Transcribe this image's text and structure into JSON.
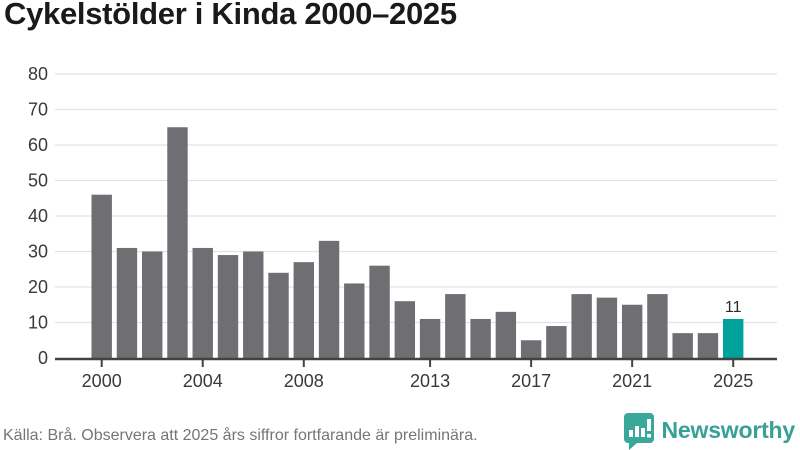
{
  "title": "Cykelstölder i Kinda 2000–2025",
  "footer": {
    "source_note": "Källa: Brå. Observera att 2025 års siffror fortfarande är preliminära.",
    "brand": "Newsworthy",
    "brand_icon": "newsworthy-bubble-barchart-icon"
  },
  "colors": {
    "bar": "#6e6e73",
    "highlight": "#00a39b",
    "grid": "#e2e2e2",
    "axis": "#424242",
    "tick_label": "#3a3a3a",
    "annotation": "#2b2b2b",
    "brand_teal": "#38a096"
  },
  "chart_data": {
    "type": "bar",
    "title": "Cykelstölder i Kinda 2000–2025",
    "xlabel": "",
    "ylabel": "",
    "categories": [
      2000,
      2001,
      2002,
      2003,
      2004,
      2005,
      2006,
      2007,
      2008,
      2009,
      2010,
      2011,
      2012,
      2013,
      2014,
      2015,
      2016,
      2017,
      2018,
      2019,
      2020,
      2021,
      2022,
      2023,
      2024,
      2025
    ],
    "values": [
      46,
      31,
      30,
      65,
      31,
      29,
      30,
      24,
      27,
      33,
      21,
      26,
      16,
      11,
      18,
      11,
      13,
      5,
      9,
      18,
      17,
      15,
      18,
      7,
      7,
      11
    ],
    "highlight_year": 2025,
    "annotation": {
      "year": 2025,
      "label": "11"
    },
    "xticks": [
      2000,
      2004,
      2008,
      2013,
      2017,
      2021,
      2025
    ],
    "yticks": [
      0,
      10,
      20,
      30,
      40,
      50,
      60,
      70,
      80
    ],
    "ylim": [
      0,
      80
    ],
    "grid": true,
    "legend": "none"
  }
}
